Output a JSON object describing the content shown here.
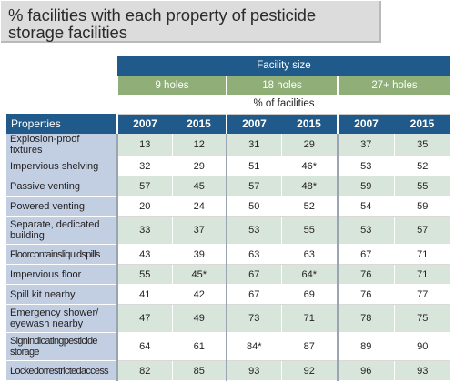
{
  "title": {
    "line1": "% facilities with each property of pesticide",
    "line2": "storage facilities"
  },
  "header": {
    "facility_size": "Facility size",
    "groups": [
      "9 holes",
      "18 holes",
      "27+ holes"
    ],
    "percent_label": "% of facilities",
    "properties_label": "Properties",
    "years": [
      "2007",
      "2015",
      "2007",
      "2015",
      "2007",
      "2015"
    ]
  },
  "rows": [
    {
      "label": "Explosion-proof fixtures",
      "values": [
        "13",
        "12",
        "31",
        "29",
        "37",
        "35"
      ]
    },
    {
      "label": "Impervious shelving",
      "values": [
        "32",
        "29",
        "51",
        "46*",
        "53",
        "52"
      ]
    },
    {
      "label": "Passive venting",
      "values": [
        "57",
        "45",
        "57",
        "48*",
        "59",
        "55"
      ]
    },
    {
      "label": "Powered venting",
      "values": [
        "20",
        "24",
        "50",
        "52",
        "54",
        "59"
      ]
    },
    {
      "label": "Separate, dedicated building",
      "values": [
        "33",
        "37",
        "53",
        "55",
        "53",
        "57"
      ]
    },
    {
      "label": "Floorcontainsliquidspills",
      "values": [
        "43",
        "39",
        "63",
        "63",
        "67",
        "71"
      ]
    },
    {
      "label": "Impervious floor",
      "values": [
        "55",
        "45*",
        "67",
        "64*",
        "76",
        "71"
      ]
    },
    {
      "label": "Spill kit nearby",
      "values": [
        "41",
        "42",
        "67",
        "69",
        "76",
        "77"
      ]
    },
    {
      "label": "Emergency shower/ eyewash nearby",
      "values": [
        "47",
        "49",
        "73",
        "71",
        "78",
        "75"
      ]
    },
    {
      "label": "Signindicatingpesticide storage",
      "values": [
        "64",
        "61",
        "84*",
        "87",
        "89",
        "90"
      ]
    },
    {
      "label": "Lockedorrestrictedaccess",
      "values": [
        "82",
        "85",
        "93",
        "92",
        "96",
        "93"
      ]
    }
  ]
}
